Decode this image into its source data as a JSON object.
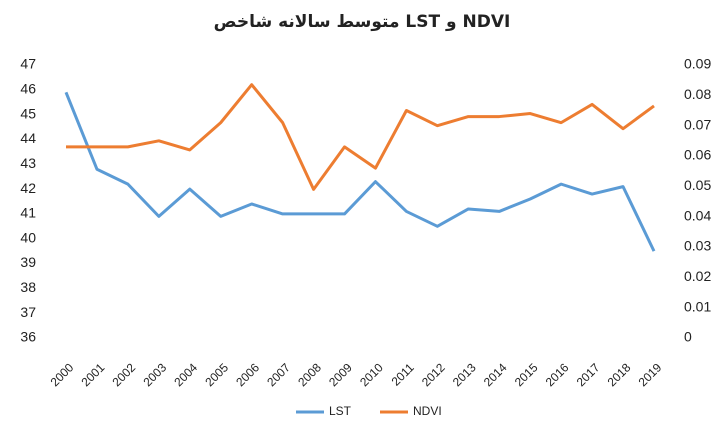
{
  "chart_data": {
    "type": "line",
    "title": "متوسط سالانه شاخص LST و NDVI",
    "categories": [
      "2000",
      "2001",
      "2002",
      "2003",
      "2004",
      "2005",
      "2006",
      "2007",
      "2008",
      "2009",
      "2010",
      "2011",
      "2012",
      "2013",
      "2014",
      "2015",
      "2016",
      "2017",
      "2018",
      "2019"
    ],
    "series": [
      {
        "name": "LST",
        "color": "#5b9bd5",
        "values": [
          45.9,
          42.8,
          42.2,
          40.9,
          42.0,
          40.9,
          41.4,
          41.0,
          41.0,
          41.0,
          42.3,
          41.1,
          40.5,
          41.2,
          41.1,
          41.6,
          42.2,
          41.8,
          42.1,
          39.5
        ]
      },
      {
        "name": "NDVI",
        "color": "#ed7d31",
        "axis": "y2",
        "values": [
          0.063,
          0.063,
          0.063,
          0.065,
          0.062,
          0.071,
          0.0835,
          0.071,
          0.049,
          0.063,
          0.056,
          0.075,
          0.07,
          0.073,
          0.073,
          0.074,
          0.071,
          0.077,
          0.069,
          0.0765
        ]
      }
    ],
    "ylim": [
      36,
      47
    ],
    "yticks": [
      36,
      37,
      38,
      39,
      40,
      41,
      42,
      43,
      44,
      45,
      46,
      47
    ],
    "y2lim": [
      0,
      0.09
    ],
    "y2ticks": [
      0,
      0.01,
      0.02,
      0.03,
      0.04,
      0.05,
      0.06,
      0.07,
      0.08,
      0.09
    ],
    "grid": false,
    "legend": "bottom"
  }
}
